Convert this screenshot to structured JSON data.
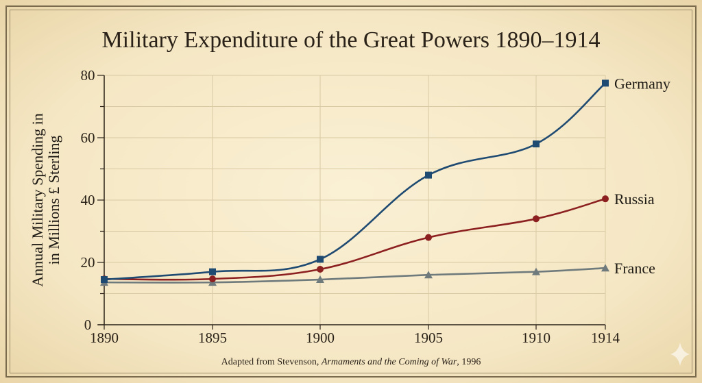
{
  "chart_data": {
    "type": "line",
    "title": "Military Expenditure of the Great Powers 1890–1914",
    "ylabel": "Annual Military Spending in in Millions £ Sterling",
    "ylabel_lines": [
      "Annual Military Spending in",
      "in Millions £ Sterling"
    ],
    "xlabel": "",
    "categories": [
      "1890",
      "1895",
      "1900",
      "1905",
      "1910",
      "1914"
    ],
    "yticks": [
      "0",
      "20",
      "40",
      "60",
      "80"
    ],
    "ylim": [
      0,
      80
    ],
    "grid": true,
    "series": [
      {
        "name": "Germany",
        "color": "#1f4a72",
        "marker": "square",
        "values": [
          14.5,
          17,
          21,
          48,
          58,
          77.5
        ]
      },
      {
        "name": "Russia",
        "color": "#8c2020",
        "marker": "circle",
        "values": [
          14.7,
          14.7,
          17.8,
          28,
          34,
          40.4
        ]
      },
      {
        "name": "France",
        "color": "#6f7a7c",
        "marker": "triangle",
        "values": [
          13.6,
          13.6,
          14.5,
          16,
          17,
          18.2
        ]
      }
    ],
    "legend": "direct labels at line ends",
    "source": {
      "prefix": "Adapted from Stevenson, ",
      "work": "Armaments and the Coming of War",
      "suffix": ", 1996"
    }
  }
}
